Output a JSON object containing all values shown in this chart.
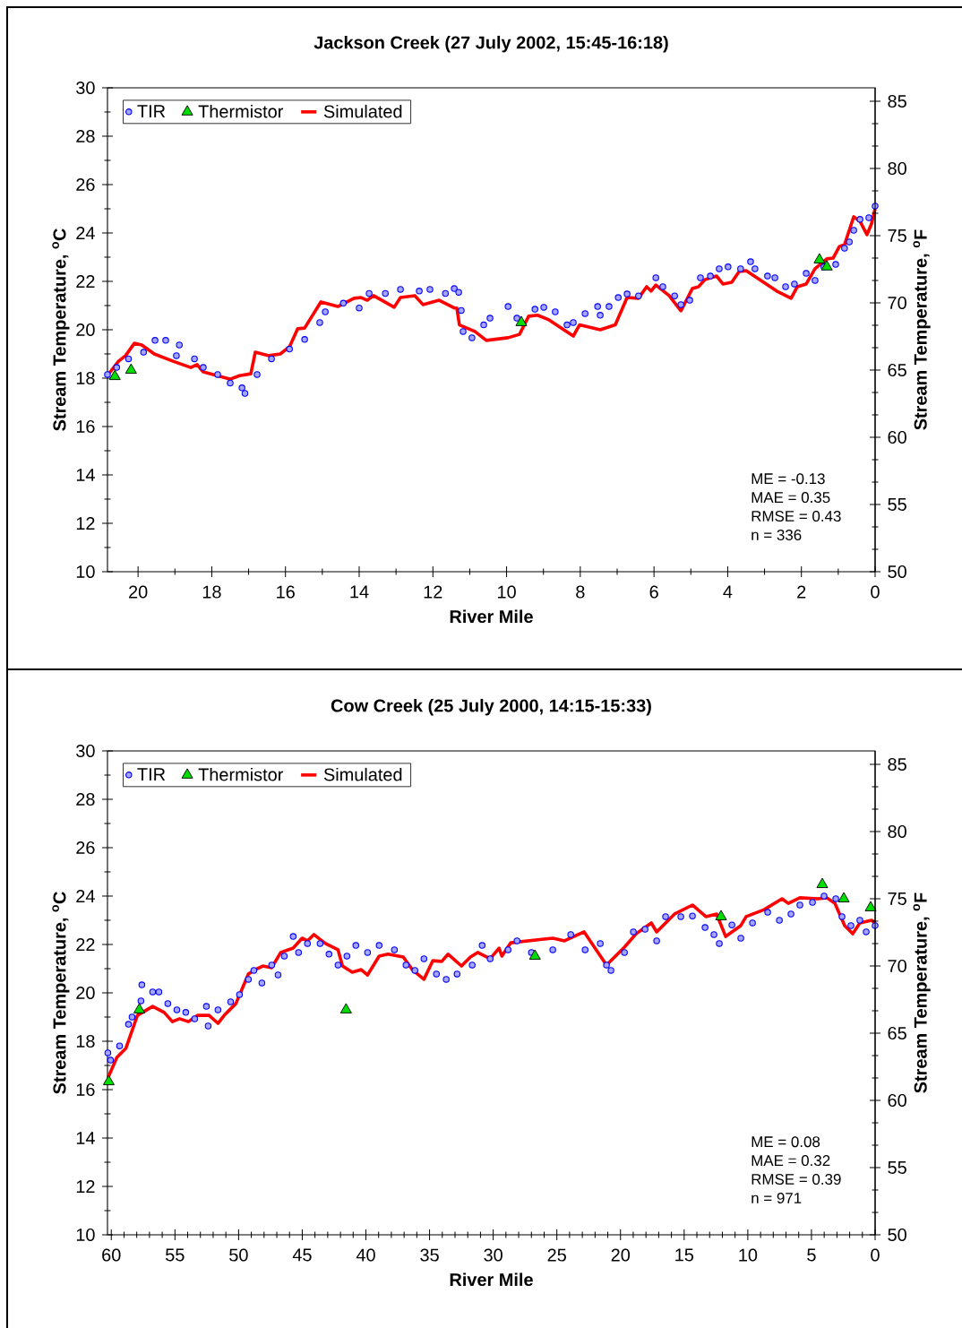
{
  "chart_data": [
    {
      "type": "scatter",
      "title": "Jackson Creek (27 July 2002, 15:45-16:18)",
      "xlabel": "River Mile",
      "ylabel": "Stream Temperature, $^{o}$C",
      "y2label": "Stream Temperature, $^{o}$F",
      "xlim": [
        20.83,
        0
      ],
      "xticks": [
        20,
        18,
        16,
        14,
        12,
        10,
        8,
        6,
        4,
        2,
        0
      ],
      "ylim": [
        10,
        30
      ],
      "yticks": [
        10,
        12,
        14,
        16,
        18,
        20,
        22,
        24,
        26,
        28,
        30
      ],
      "y2lim": [
        50,
        86
      ],
      "y2ticks": [
        50,
        55,
        60,
        65,
        70,
        75,
        80,
        85
      ],
      "legend": "top left",
      "annotations": [
        "ME = -0.13",
        "MAE = 0.35",
        "RMSE = 0.43",
        "n = 336"
      ],
      "series": [
        {
          "name": "TIR",
          "marker": "circle",
          "color": "#0000ff",
          "x": [
            20.83,
            20.58,
            20.26,
            19.85,
            19.54,
            19.25,
            18.96,
            18.88,
            18.47,
            18.23,
            17.84,
            17.5,
            17.18,
            17.1,
            16.77,
            16.38,
            15.89,
            15.48,
            15.07,
            14.92,
            14.43,
            14.0,
            13.73,
            13.29,
            12.88,
            12.37,
            12.08,
            11.66,
            11.42,
            11.3,
            11.23,
            11.18,
            10.94,
            10.62,
            10.45,
            9.96,
            9.72,
            9.23,
            8.99,
            8.68,
            8.36,
            8.19,
            7.87,
            7.53,
            7.46,
            7.22,
            6.97,
            6.73,
            6.42,
            5.95,
            5.76,
            5.44,
            5.27,
            5.03,
            4.74,
            4.47,
            4.23,
            3.99,
            3.65,
            3.38,
            3.26,
            2.92,
            2.72,
            2.43,
            2.19,
            1.87,
            1.63,
            1.39,
            1.07,
            0.83,
            0.7,
            0.58,
            0.41,
            0.17,
            0
          ],
          "values": [
            18.15,
            18.44,
            18.8,
            19.07,
            19.56,
            19.56,
            18.93,
            19.37,
            18.8,
            18.44,
            18.15,
            17.8,
            17.6,
            17.37,
            18.15,
            18.8,
            19.2,
            19.6,
            20.3,
            20.74,
            21.1,
            20.9,
            21.5,
            21.5,
            21.67,
            21.6,
            21.67,
            21.5,
            21.7,
            21.55,
            20.8,
            19.93,
            19.67,
            20.2,
            20.48,
            20.96,
            20.48,
            20.85,
            20.93,
            20.74,
            20.2,
            20.3,
            20.67,
            20.96,
            20.6,
            20.96,
            21.33,
            21.48,
            21.4,
            22.15,
            21.78,
            21.4,
            21.04,
            21.22,
            22.15,
            22.22,
            22.52,
            22.6,
            22.52,
            22.81,
            22.52,
            22.22,
            22.15,
            21.78,
            21.89,
            22.33,
            22.04,
            22.6,
            22.7,
            23.37,
            23.63,
            24.11,
            24.56,
            24.63,
            25.11
          ]
        },
        {
          "name": "Thermistor",
          "marker": "triangle",
          "color": "#00dd00",
          "x": [
            20.63,
            20.19,
            9.6,
            1.51,
            1.31
          ],
          "values": [
            18.07,
            18.33,
            20.3,
            22.89,
            22.6
          ]
        },
        {
          "name": "Simulated",
          "type": "line",
          "marker": "none",
          "color": "#ff0000",
          "x": [
            20.83,
            20.53,
            20.34,
            20.1,
            19.9,
            19.56,
            19.05,
            18.57,
            18.4,
            18.23,
            17.5,
            17.25,
            16.94,
            16.82,
            16.45,
            16.14,
            15.89,
            15.67,
            15.48,
            15.04,
            14.58,
            14.14,
            13.95,
            13.78,
            13.61,
            13.05,
            12.88,
            12.49,
            12.27,
            11.83,
            11.42,
            11.35,
            11.28,
            10.86,
            10.55,
            9.96,
            9.65,
            9.4,
            9.16,
            8.85,
            8.19,
            8.02,
            7.46,
            7.05,
            6.73,
            6.42,
            6.2,
            6.08,
            5.95,
            5.59,
            5.27,
            4.96,
            4.79,
            4.62,
            4.3,
            4.13,
            3.89,
            3.69,
            3.5,
            2.67,
            2.28,
            2.11,
            1.87,
            1.63,
            1.31,
            1.14,
            0.97,
            0.83,
            0.58,
            0.41,
            0.22,
            0.1,
            0
          ],
          "values": [
            18.11,
            18.7,
            18.93,
            19.44,
            19.37,
            19.0,
            18.7,
            18.44,
            18.56,
            18.26,
            17.96,
            18.1,
            18.18,
            19.07,
            18.93,
            19.0,
            19.3,
            20.04,
            20.07,
            21.15,
            20.96,
            21.3,
            21.33,
            21.22,
            21.41,
            20.93,
            21.33,
            21.41,
            21.04,
            21.22,
            20.9,
            20.9,
            20.2,
            19.93,
            19.56,
            19.67,
            19.81,
            20.56,
            20.6,
            20.41,
            19.74,
            20.2,
            20.0,
            20.2,
            21.33,
            21.3,
            21.78,
            21.6,
            21.85,
            21.41,
            20.78,
            21.7,
            21.78,
            22.07,
            22.22,
            21.89,
            21.96,
            22.41,
            22.44,
            21.6,
            21.3,
            21.78,
            21.89,
            22.52,
            22.93,
            22.96,
            23.44,
            23.52,
            24.67,
            24.48,
            23.93,
            24.37,
            25.0
          ]
        }
      ]
    },
    {
      "type": "scatter",
      "title": "Cow Creek (25 July 2000, 14:15-15:33)",
      "xlabel": "River Mile",
      "ylabel": "Stream Temperature, $^{o}$C",
      "y2label": "Stream Temperature, $^{o}$F",
      "xlim": [
        60.3,
        0
      ],
      "xticks": [
        60,
        55,
        50,
        45,
        40,
        35,
        30,
        25,
        20,
        15,
        10,
        5,
        0
      ],
      "ylim": [
        10,
        30
      ],
      "yticks": [
        10,
        12,
        14,
        16,
        18,
        20,
        22,
        24,
        26,
        28,
        30
      ],
      "y2lim": [
        50,
        86
      ],
      "y2ticks": [
        50,
        55,
        60,
        65,
        70,
        75,
        80,
        85
      ],
      "legend": "top left",
      "annotations": [
        "ME = 0.08",
        "MAE = 0.32",
        "RMSE = 0.39",
        "n = 971"
      ],
      "series": [
        {
          "name": "TIR",
          "marker": "circle",
          "color": "#0000ff",
          "x": [
            60.27,
            60.06,
            59.35,
            58.65,
            58.37,
            57.67,
            57.6,
            56.75,
            56.26,
            55.56,
            54.85,
            54.15,
            53.45,
            52.53,
            52.39,
            51.62,
            50.63,
            49.93,
            49.23,
            48.8,
            48.17,
            47.4,
            46.9,
            46.41,
            45.71,
            45.29,
            44.59,
            43.6,
            42.9,
            42.19,
            41.49,
            40.79,
            39.87,
            38.96,
            37.76,
            36.85,
            36.15,
            35.44,
            34.46,
            33.69,
            32.84,
            31.65,
            30.87,
            30.24,
            28.83,
            28.13,
            27.0,
            25.32,
            23.91,
            22.78,
            21.59,
            21.1,
            20.75,
            19.69,
            18.99,
            18.07,
            17.16,
            16.46,
            15.26,
            14.35,
            13.36,
            12.66,
            12.24,
            11.25,
            10.55,
            9.63,
            8.44,
            7.52,
            6.61,
            5.91,
            4.92,
            4.01,
            3.09,
            2.6,
            1.9,
            1.2,
            0.7,
            0
          ],
          "values": [
            17.52,
            17.22,
            17.81,
            18.7,
            19.0,
            19.67,
            20.33,
            20.04,
            20.04,
            19.56,
            19.3,
            19.19,
            18.93,
            19.44,
            18.63,
            19.3,
            19.63,
            19.93,
            20.56,
            20.93,
            20.41,
            21.15,
            20.74,
            21.52,
            22.33,
            21.67,
            22.04,
            22.04,
            21.6,
            21.15,
            21.52,
            21.96,
            21.67,
            21.96,
            21.78,
            21.15,
            20.93,
            21.41,
            20.78,
            20.56,
            20.78,
            21.15,
            21.96,
            21.41,
            21.78,
            22.15,
            21.67,
            21.78,
            22.41,
            21.78,
            22.04,
            21.15,
            20.93,
            21.67,
            22.52,
            22.63,
            22.15,
            23.15,
            23.15,
            23.18,
            22.7,
            22.41,
            22.04,
            22.81,
            22.26,
            22.89,
            23.33,
            23.0,
            23.26,
            23.63,
            23.74,
            24.0,
            23.89,
            23.15,
            22.78,
            23.0,
            22.52,
            22.78
          ]
        },
        {
          "name": "Thermistor",
          "marker": "triangle",
          "color": "#00dd00",
          "x": [
            60.2,
            57.8,
            41.56,
            26.72,
            12.1,
            4.15,
            2.46,
            0.35
          ],
          "values": [
            16.33,
            19.3,
            19.3,
            21.52,
            23.15,
            24.48,
            23.89,
            23.52
          ]
        },
        {
          "name": "Simulated",
          "type": "line",
          "marker": "none",
          "color": "#ff0000",
          "x": [
            60.27,
            59.56,
            58.86,
            57.95,
            56.75,
            55.84,
            55.2,
            54.64,
            53.94,
            53.23,
            52.32,
            51.62,
            51.13,
            50.21,
            49.23,
            48.8,
            48.1,
            47.4,
            46.69,
            45.71,
            45.01,
            44.59,
            44.09,
            43.18,
            42.19,
            41.84,
            41.07,
            40.37,
            39.87,
            38.96,
            38.26,
            37.06,
            36.36,
            35.44,
            34.74,
            34.04,
            33.54,
            32.49,
            31.79,
            31.22,
            30.24,
            29.54,
            29.32,
            28.62,
            26.02,
            25.32,
            24.4,
            22.86,
            21.1,
            19.69,
            18.78,
            17.58,
            17.16,
            15.75,
            14.35,
            13.29,
            12.45,
            11.74,
            10.55,
            10.13,
            8.72,
            7.31,
            6.82,
            5.91,
            4.5,
            3.8,
            3.16,
            2.39,
            1.76,
            1.2,
            0.28,
            0
          ],
          "values": [
            16.48,
            17.33,
            17.7,
            19.07,
            19.44,
            19.19,
            18.81,
            18.93,
            18.81,
            19.07,
            19.07,
            18.74,
            19.07,
            19.56,
            20.78,
            20.93,
            21.11,
            21.04,
            21.67,
            21.85,
            22.26,
            22.15,
            22.41,
            22.04,
            21.78,
            21.11,
            20.85,
            20.96,
            20.74,
            21.52,
            21.6,
            21.48,
            20.96,
            20.56,
            21.33,
            21.3,
            21.6,
            21.11,
            21.48,
            21.67,
            21.41,
            21.85,
            21.52,
            22.07,
            22.22,
            22.26,
            22.15,
            22.52,
            21.15,
            21.89,
            22.44,
            22.89,
            22.52,
            23.26,
            23.63,
            23.15,
            23.26,
            22.33,
            22.78,
            23.15,
            23.44,
            23.89,
            23.7,
            23.93,
            23.89,
            23.93,
            23.7,
            22.78,
            22.44,
            22.89,
            23.0,
            22.89
          ]
        }
      ]
    }
  ]
}
